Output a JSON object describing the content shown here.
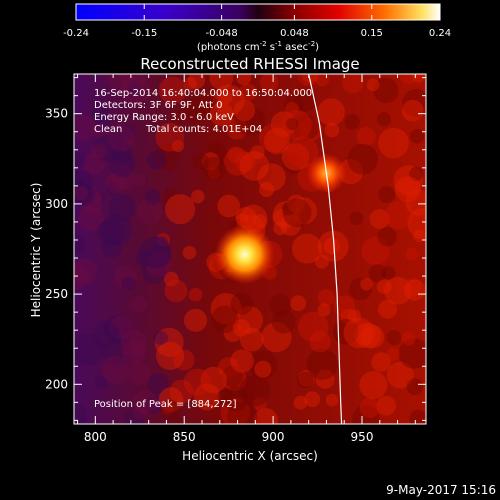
{
  "chart_data": {
    "type": "heatmap",
    "title": "Reconstructed RHESSI Image",
    "xlabel": "Heliocentric X (arcsec)",
    "ylabel": "Heliocentric Y (arcsec)",
    "x_range": [
      788,
      986
    ],
    "y_range": [
      178,
      372
    ],
    "x_ticks": [
      800,
      850,
      900,
      950
    ],
    "y_ticks": [
      200,
      250,
      300,
      350
    ],
    "colorbar": {
      "range": [
        -0.24,
        0.24
      ],
      "ticks": [
        "-0.24",
        "-0.15",
        "-0.048",
        "0.048",
        "0.15",
        "0.24"
      ],
      "unit_text": "(photons cm",
      "unit_exp1": "-2",
      "unit_mid1": " s",
      "unit_exp2": "-1",
      "unit_mid2": " asec",
      "unit_exp3": "-2",
      "unit_end": ")"
    },
    "annotations": {
      "time": "16-Sep-2014 16:40:04.000 to 16:50:04.000",
      "detectors": "Detectors: 3F 6F 9F, Att 0",
      "energy": "Energy Range: 3.0 - 6.0 keV",
      "clean": "Clean",
      "counts": "Total counts: 4.01E+04",
      "peak": "Position of Peak = [884,272]"
    },
    "sources": [
      {
        "x": 884,
        "y": 272,
        "value": 0.24
      },
      {
        "x": 930,
        "y": 317,
        "value": 0.17
      }
    ],
    "limb_points": [
      [
        920,
        372
      ],
      [
        926,
        345
      ],
      [
        931,
        310
      ],
      [
        934,
        280
      ],
      [
        936,
        250
      ],
      [
        937,
        220
      ],
      [
        938,
        190
      ],
      [
        938.5,
        178
      ]
    ],
    "colors": {
      "background": "#000000",
      "negative_end": "#0000ff",
      "mid": "#000000",
      "positive_end": "#ffffff"
    }
  },
  "footer": {
    "date": "9-May-2017 15:16"
  }
}
